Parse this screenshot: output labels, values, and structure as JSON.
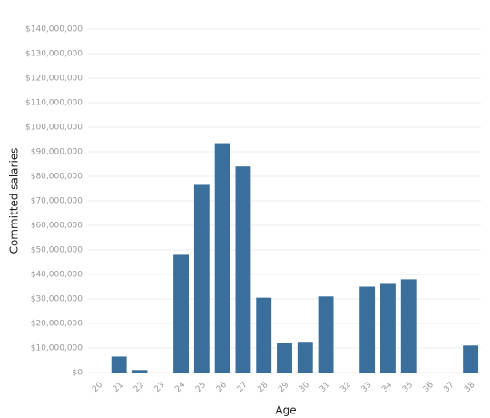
{
  "chart_data": {
    "type": "bar",
    "x_label": "Age",
    "y_label": "Committed salaries",
    "categories": [
      "20",
      "21",
      "22",
      "23",
      "24",
      "25",
      "26",
      "27",
      "28",
      "29",
      "30",
      "31",
      "32",
      "33",
      "34",
      "35",
      "36",
      "37",
      "38"
    ],
    "values": [
      0,
      6500000,
      1000000,
      0,
      48000000,
      76500000,
      93500000,
      84000000,
      30500000,
      12000000,
      12500000,
      31000000,
      0,
      35000000,
      36500000,
      38000000,
      0,
      0,
      11000000
    ],
    "color": "#3a6f9b",
    "ylim": [
      0,
      140000000
    ],
    "yticks": [
      {
        "value": 0,
        "label": "$0"
      },
      {
        "value": 10000000,
        "label": "$10,000,000"
      },
      {
        "value": 20000000,
        "label": "$20,000,000"
      },
      {
        "value": 30000000,
        "label": "$30,000,000"
      },
      {
        "value": 40000000,
        "label": "$40,000,000"
      },
      {
        "value": 50000000,
        "label": "$50,000,000"
      },
      {
        "value": 60000000,
        "label": "$60,000,000"
      },
      {
        "value": 70000000,
        "label": "$70,000,000"
      },
      {
        "value": 80000000,
        "label": "$80,000,000"
      },
      {
        "value": 90000000,
        "label": "$90,000,000"
      },
      {
        "value": 100000000,
        "label": "$100,000,000"
      },
      {
        "value": 110000000,
        "label": "$110,000,000"
      },
      {
        "value": 120000000,
        "label": "$120,000,000"
      },
      {
        "value": 130000000,
        "label": "$130,000,000"
      },
      {
        "value": 140000000,
        "label": "$140,000,000"
      }
    ],
    "grid": true
  }
}
